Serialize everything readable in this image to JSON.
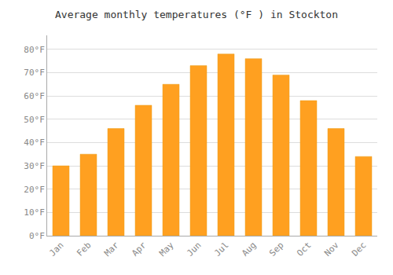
{
  "chart_data": {
    "type": "bar",
    "title": "Average monthly temperatures (°F ) in Stockton",
    "categories": [
      "Jan",
      "Feb",
      "Mar",
      "Apr",
      "May",
      "Jun",
      "Jul",
      "Aug",
      "Sep",
      "Oct",
      "Nov",
      "Dec"
    ],
    "values": [
      30,
      35,
      46,
      56,
      65,
      73,
      78,
      76,
      69,
      58,
      46,
      34
    ],
    "color": "#FFA020",
    "ylim": [
      0,
      86
    ],
    "yticks": [
      {
        "value": 0,
        "label": "0°F"
      },
      {
        "value": 10,
        "label": "10°F"
      },
      {
        "value": 20,
        "label": "20°F"
      },
      {
        "value": 30,
        "label": "30°F"
      },
      {
        "value": 40,
        "label": "40°F"
      },
      {
        "value": 50,
        "label": "50°F"
      },
      {
        "value": 60,
        "label": "60°F"
      },
      {
        "value": 70,
        "label": "70°F"
      },
      {
        "value": 80,
        "label": "80°F"
      }
    ],
    "grid": true
  }
}
